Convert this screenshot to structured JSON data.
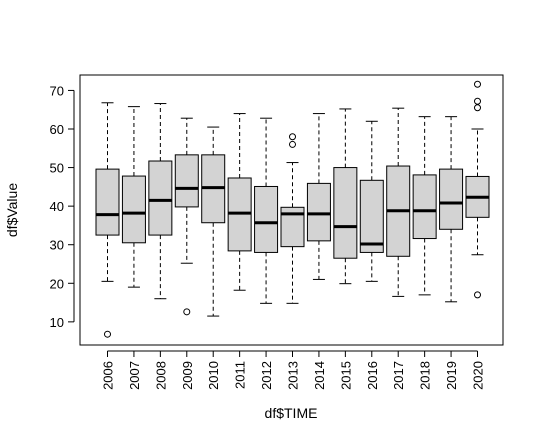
{
  "chart_data": {
    "type": "boxplot",
    "title": "",
    "xlabel": "df$TIME",
    "ylabel": "df$Value",
    "ylim": [
      4,
      74
    ],
    "yticks": [
      10,
      20,
      30,
      40,
      50,
      60,
      70
    ],
    "grid": false,
    "box_fill": "#d3d3d3",
    "categories": [
      "2006",
      "2007",
      "2008",
      "2009",
      "2010",
      "2011",
      "2012",
      "2013",
      "2014",
      "2015",
      "2016",
      "2017",
      "2018",
      "2019",
      "2020"
    ],
    "boxes": [
      {
        "whisker_low": 20.5,
        "q1": 32.5,
        "median": 37.8,
        "q3": 49.6,
        "whisker_high": 66.8,
        "outliers": [
          6.8
        ]
      },
      {
        "whisker_low": 19.0,
        "q1": 30.5,
        "median": 38.2,
        "q3": 47.8,
        "whisker_high": 65.8,
        "outliers": []
      },
      {
        "whisker_low": 16.0,
        "q1": 32.5,
        "median": 41.5,
        "q3": 51.7,
        "whisker_high": 66.6,
        "outliers": []
      },
      {
        "whisker_low": 25.2,
        "q1": 39.8,
        "median": 44.6,
        "q3": 53.3,
        "whisker_high": 62.8,
        "outliers": [
          12.6
        ]
      },
      {
        "whisker_low": 11.5,
        "q1": 35.7,
        "median": 44.8,
        "q3": 53.3,
        "whisker_high": 60.5,
        "outliers": []
      },
      {
        "whisker_low": 18.2,
        "q1": 28.4,
        "median": 38.2,
        "q3": 47.3,
        "whisker_high": 64.0,
        "outliers": []
      },
      {
        "whisker_low": 14.8,
        "q1": 28.0,
        "median": 35.7,
        "q3": 45.1,
        "whisker_high": 62.8,
        "outliers": []
      },
      {
        "whisker_low": 14.8,
        "q1": 29.5,
        "median": 38.0,
        "q3": 39.7,
        "whisker_high": 51.3,
        "outliers": [
          56.0,
          58.0
        ]
      },
      {
        "whisker_low": 21.0,
        "q1": 31.0,
        "median": 38.0,
        "q3": 45.9,
        "whisker_high": 64.0,
        "outliers": []
      },
      {
        "whisker_low": 19.9,
        "q1": 26.5,
        "median": 34.7,
        "q3": 50.0,
        "whisker_high": 65.2,
        "outliers": []
      },
      {
        "whisker_low": 20.5,
        "q1": 28.0,
        "median": 30.2,
        "q3": 46.7,
        "whisker_high": 62.0,
        "outliers": []
      },
      {
        "whisker_low": 16.6,
        "q1": 27.0,
        "median": 38.8,
        "q3": 50.4,
        "whisker_high": 65.4,
        "outliers": []
      },
      {
        "whisker_low": 17.0,
        "q1": 31.6,
        "median": 38.8,
        "q3": 48.1,
        "whisker_high": 63.2,
        "outliers": []
      },
      {
        "whisker_low": 15.2,
        "q1": 34.0,
        "median": 40.8,
        "q3": 49.6,
        "whisker_high": 63.2,
        "outliers": []
      },
      {
        "whisker_low": 27.4,
        "q1": 37.1,
        "median": 42.3,
        "q3": 47.7,
        "whisker_high": 60.0,
        "outliers": [
          17.0,
          65.5,
          67.2,
          71.6
        ]
      }
    ]
  }
}
